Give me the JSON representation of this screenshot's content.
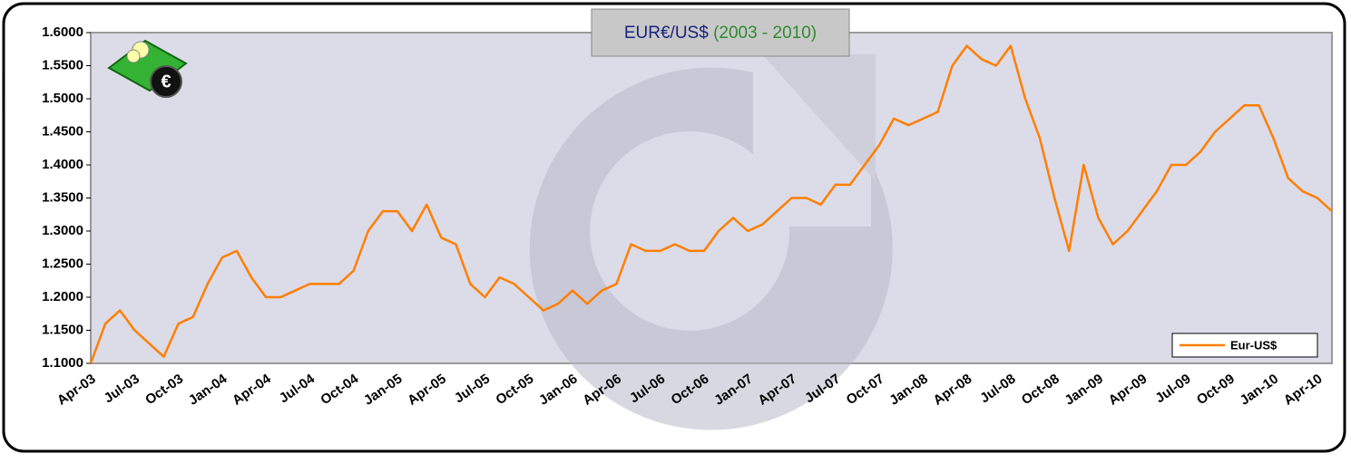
{
  "chart_data": {
    "type": "line",
    "title": "EUR€/US$",
    "subtitle": "(2003 - 2010)",
    "categories": [
      "Apr-03",
      null,
      null,
      "Jul-03",
      null,
      null,
      "Oct-03",
      null,
      null,
      "Jan-04",
      null,
      null,
      "Apr-04",
      null,
      null,
      "Jul-04",
      null,
      null,
      "Oct-04",
      null,
      null,
      "Jan-05",
      null,
      null,
      "Apr-05",
      null,
      null,
      "Jul-05",
      null,
      null,
      "Oct-05",
      null,
      null,
      "Jan-06",
      null,
      null,
      "Apr-06",
      null,
      null,
      "Jul-06",
      null,
      null,
      "Oct-06",
      null,
      null,
      "Jan-07",
      null,
      null,
      "Apr-07",
      null,
      null,
      "Jul-07",
      null,
      null,
      "Oct-07",
      null,
      null,
      "Jan-08",
      null,
      null,
      "Apr-08",
      null,
      null,
      "Jul-08",
      null,
      null,
      "Oct-08",
      null,
      null,
      "Jan-09",
      null,
      null,
      "Apr-09",
      null,
      null,
      "Jul-09",
      null,
      null,
      "Oct-09",
      null,
      null,
      "Jan-10",
      null,
      null,
      "Apr-10",
      null
    ],
    "series": [
      {
        "name": "Eur-US$",
        "color": "#ff7f00",
        "values": [
          1.1,
          1.16,
          1.18,
          1.15,
          1.13,
          1.11,
          1.16,
          1.17,
          1.22,
          1.26,
          1.27,
          1.23,
          1.2,
          1.2,
          1.21,
          1.22,
          1.22,
          1.22,
          1.24,
          1.3,
          1.33,
          1.33,
          1.3,
          1.34,
          1.29,
          1.28,
          1.22,
          1.2,
          1.23,
          1.22,
          1.2,
          1.18,
          1.19,
          1.21,
          1.19,
          1.21,
          1.22,
          1.28,
          1.27,
          1.27,
          1.28,
          1.27,
          1.27,
          1.3,
          1.32,
          1.3,
          1.31,
          1.33,
          1.35,
          1.35,
          1.34,
          1.37,
          1.37,
          1.4,
          1.43,
          1.47,
          1.46,
          1.47,
          1.48,
          1.55,
          1.58,
          1.56,
          1.55,
          1.58,
          1.5,
          1.44,
          1.35,
          1.27,
          1.4,
          1.32,
          1.28,
          1.3,
          1.33,
          1.36,
          1.4,
          1.4,
          1.42,
          1.45,
          1.47,
          1.49,
          1.49,
          1.44,
          1.38,
          1.36,
          1.35,
          1.33
        ]
      }
    ],
    "ylim": [
      1.1,
      1.6
    ],
    "yticks": [
      {
        "value": 1.1,
        "label": "1.1000"
      },
      {
        "value": 1.15,
        "label": "1.1500"
      },
      {
        "value": 1.2,
        "label": "1.2000"
      },
      {
        "value": 1.25,
        "label": "1.2500"
      },
      {
        "value": 1.3,
        "label": "1.3000"
      },
      {
        "value": 1.35,
        "label": "1.3500"
      },
      {
        "value": 1.4,
        "label": "1.4000"
      },
      {
        "value": 1.45,
        "label": "1.4500"
      },
      {
        "value": 1.5,
        "label": "1.5000"
      },
      {
        "value": 1.55,
        "label": "1.5500"
      },
      {
        "value": 1.6,
        "label": "1.6000"
      }
    ],
    "legend": "bottom-right"
  }
}
